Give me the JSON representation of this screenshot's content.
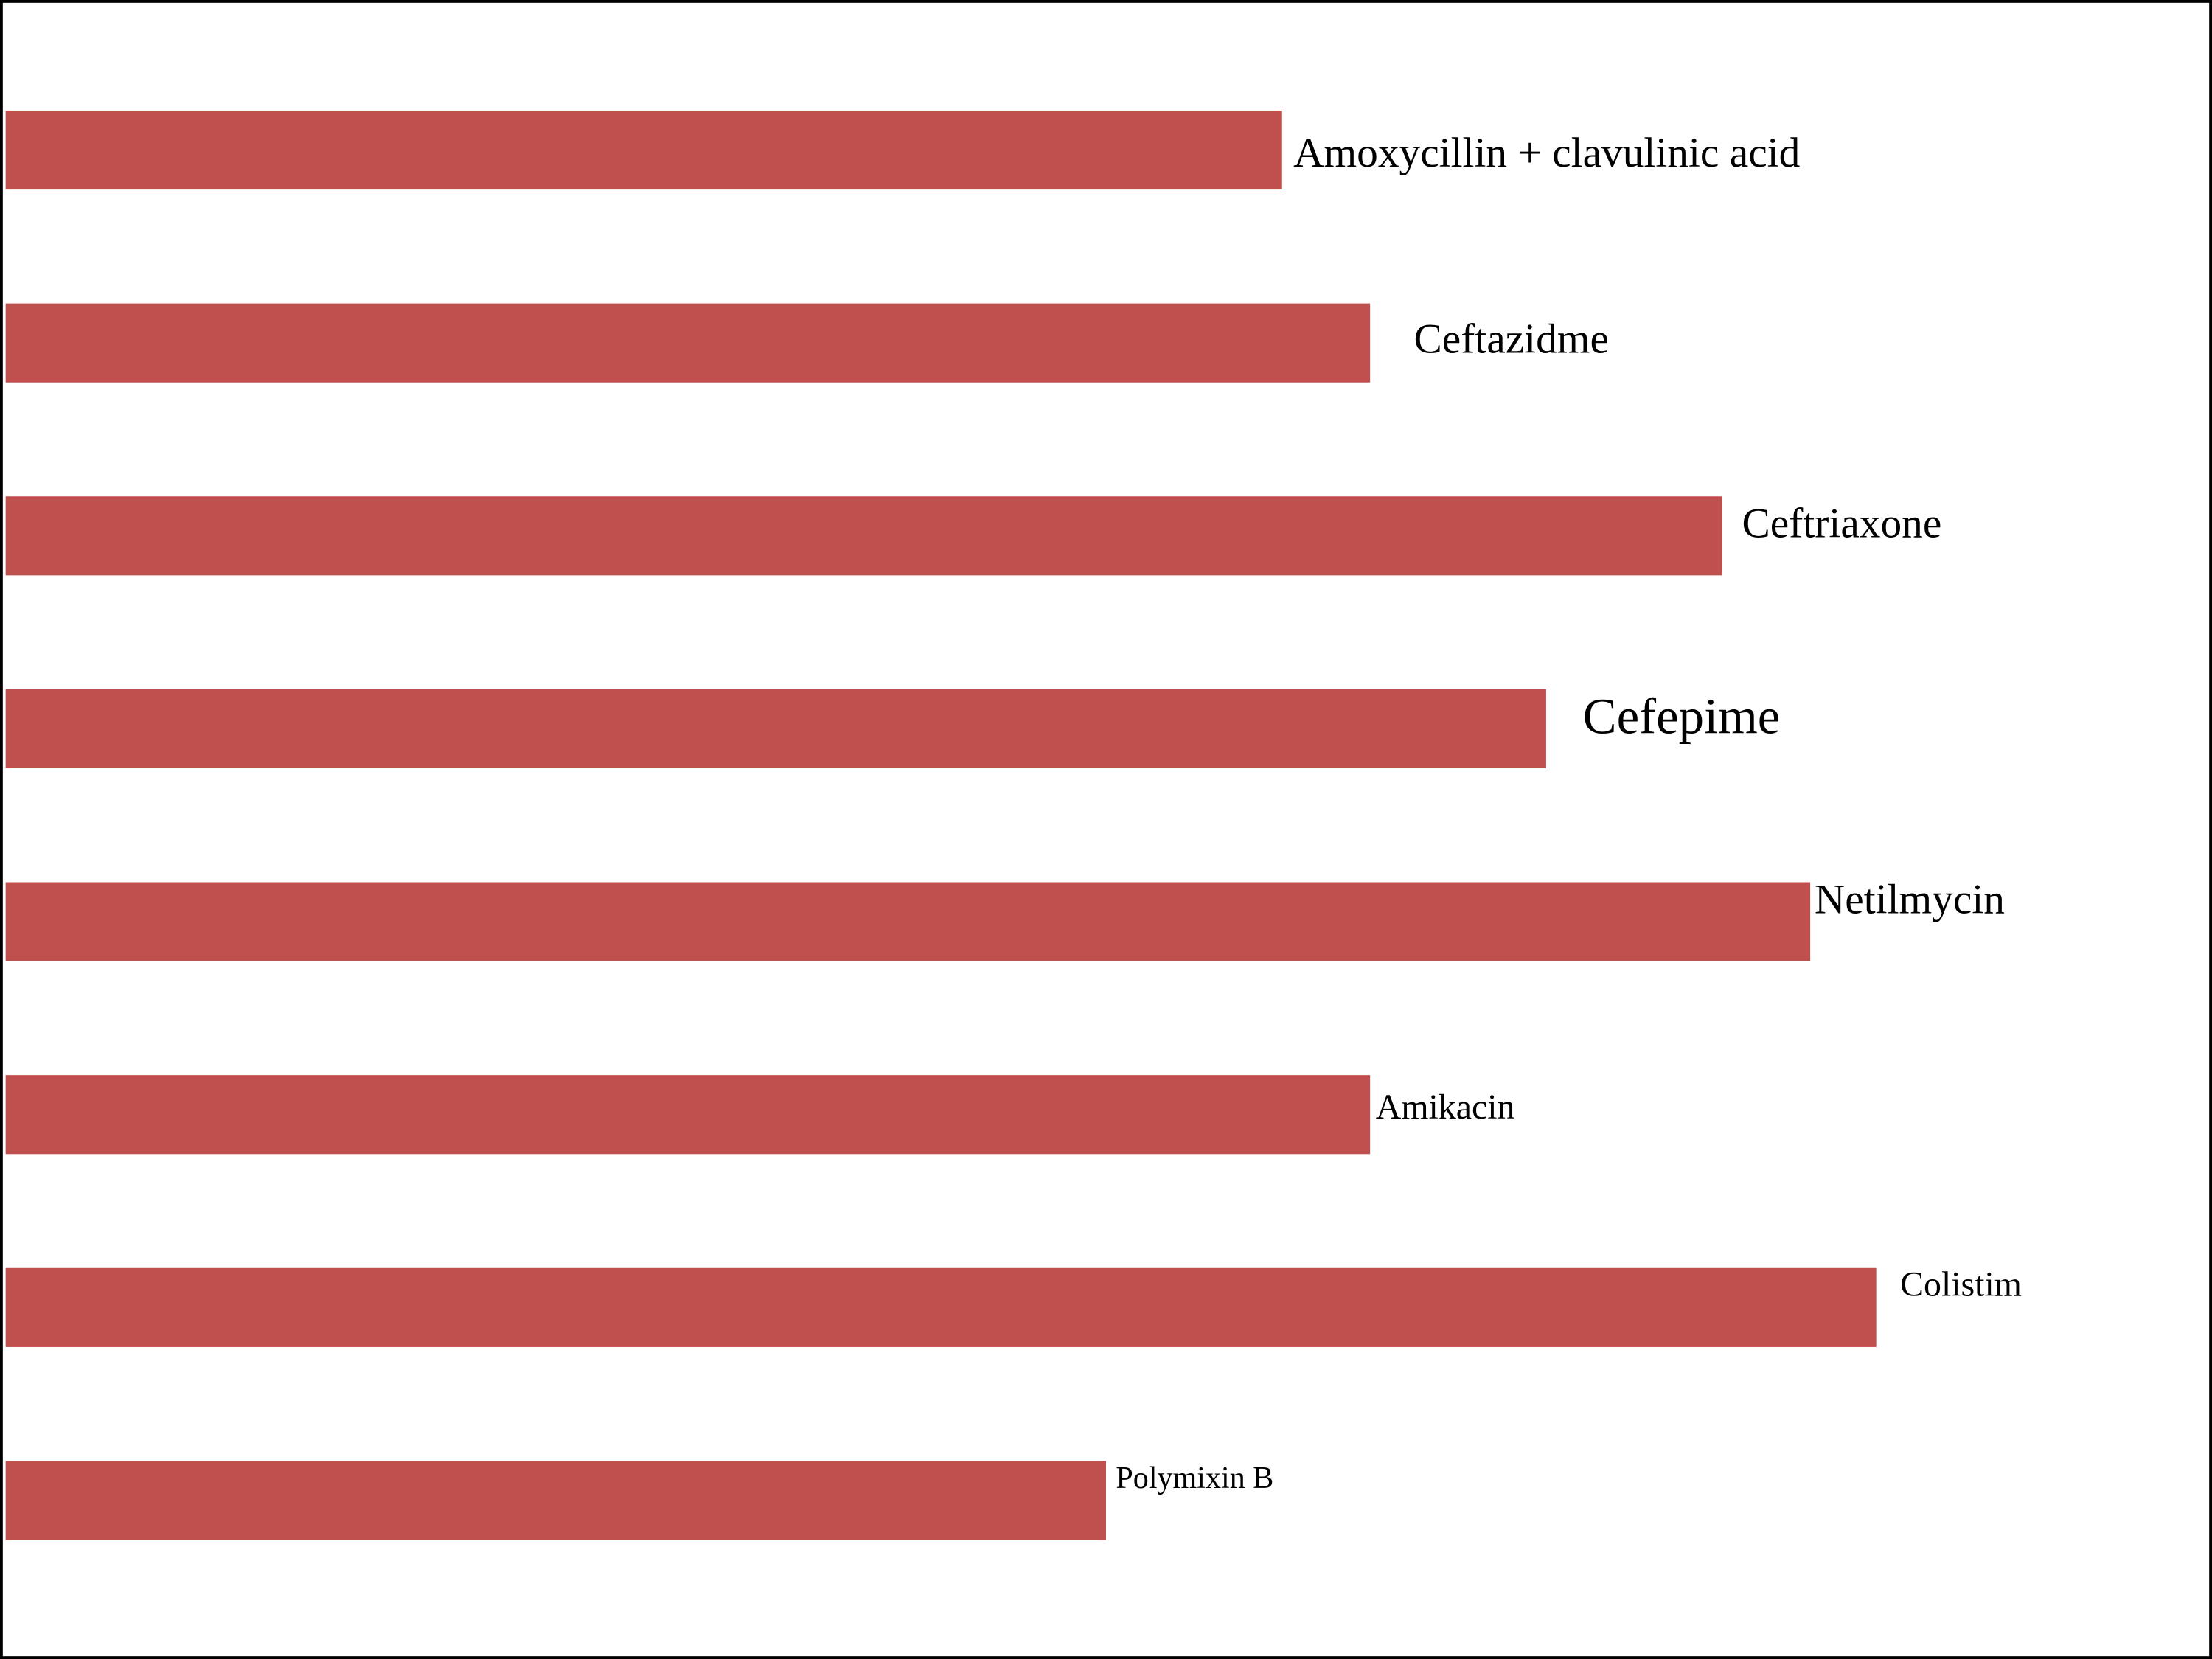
{
  "chart_data": {
    "type": "bar",
    "orientation": "horizontal",
    "color": "#c0504d",
    "categories": [
      "Amoxycillin + clavulinic acid",
      "Ceftazidme",
      "Ceftriaxone",
      "Cefepime",
      "Netilmycin",
      "Amikacin",
      "Colistim",
      "Polymixin B"
    ],
    "values": [
      58,
      62,
      78,
      70,
      82,
      62,
      85,
      50
    ],
    "xlim": [
      0,
      100
    ]
  }
}
